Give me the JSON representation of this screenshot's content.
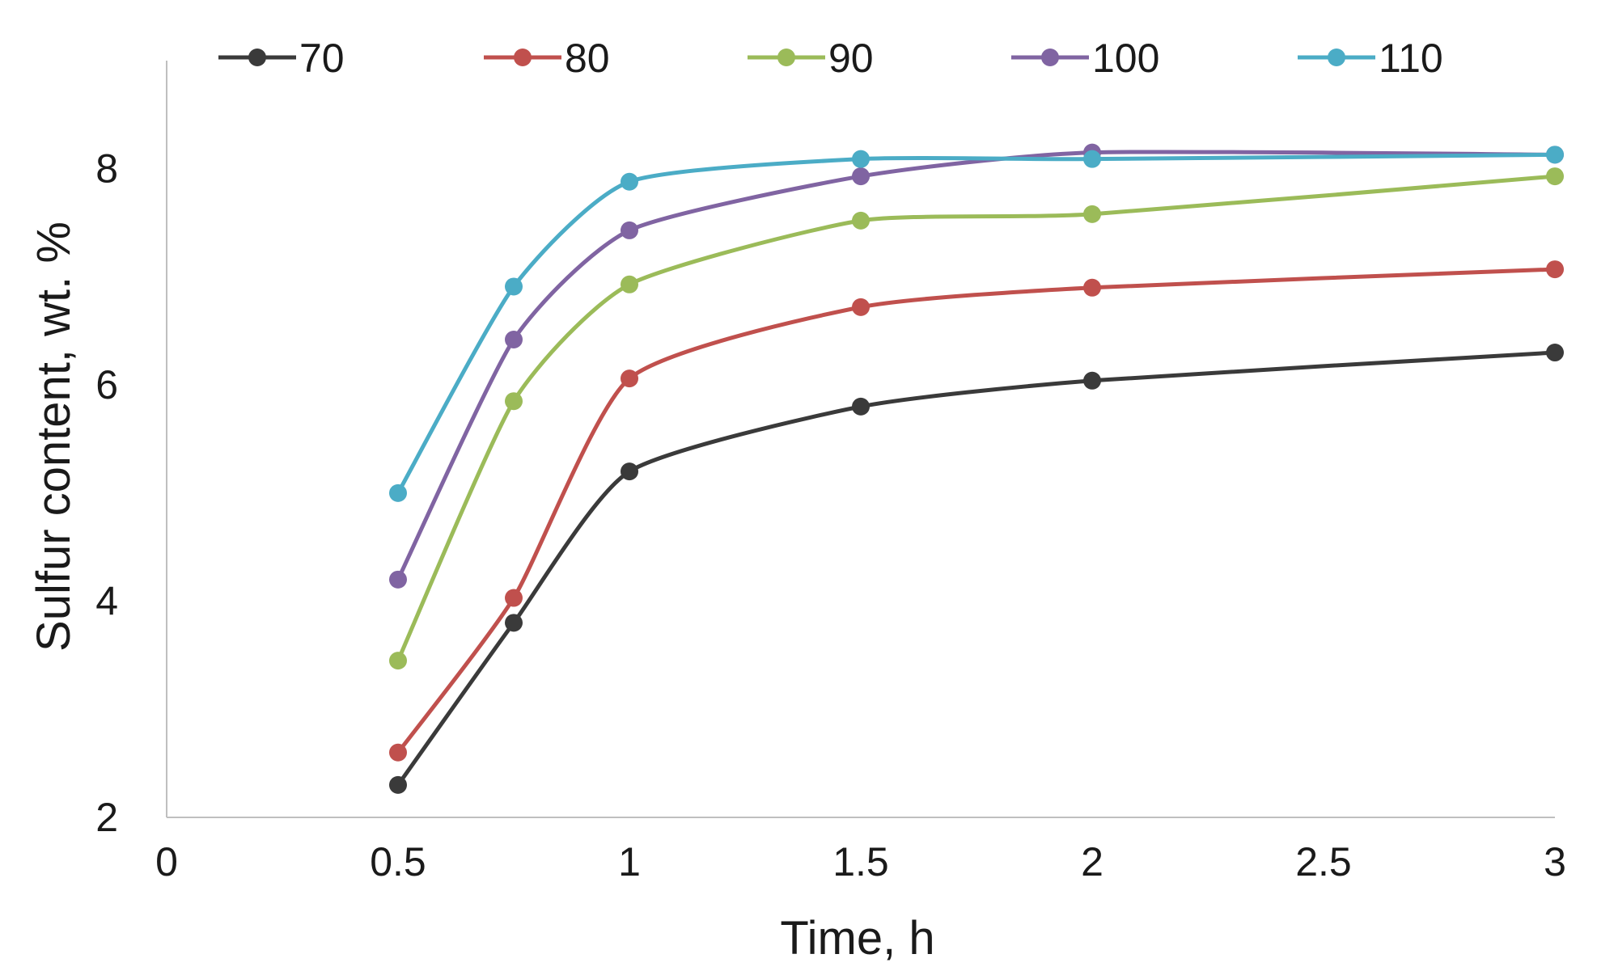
{
  "chart_data": {
    "type": "line",
    "title": "",
    "xlabel": "Time, h",
    "ylabel": "Sulfur content, wt. %",
    "xlim": [
      0,
      3
    ],
    "ylim": [
      2,
      9
    ],
    "x_ticks": [
      "0",
      "0.5",
      "1",
      "1.5",
      "2",
      "2.5",
      "3"
    ],
    "y_ticks": [
      "2",
      "4",
      "6",
      "8"
    ],
    "grid": false,
    "legend_position": "top",
    "smooth_lines": true,
    "x": [
      0.5,
      0.75,
      1,
      1.5,
      2,
      3
    ],
    "series": [
      {
        "name": "70",
        "color": "#3a3a3a",
        "values": [
          2.3,
          3.8,
          5.2,
          5.8,
          6.04,
          6.3
        ]
      },
      {
        "name": "80",
        "color": "#c0504d",
        "values": [
          2.6,
          4.03,
          6.06,
          6.72,
          6.9,
          7.07
        ]
      },
      {
        "name": "90",
        "color": "#9bbb59",
        "values": [
          3.45,
          5.85,
          6.93,
          7.52,
          7.58,
          7.93
        ]
      },
      {
        "name": "100",
        "color": "#8064a2",
        "values": [
          4.2,
          6.42,
          7.43,
          7.93,
          8.15,
          8.13
        ]
      },
      {
        "name": "110",
        "color": "#4bacc6",
        "values": [
          5.0,
          6.91,
          7.88,
          8.09,
          8.09,
          8.13
        ]
      }
    ]
  }
}
